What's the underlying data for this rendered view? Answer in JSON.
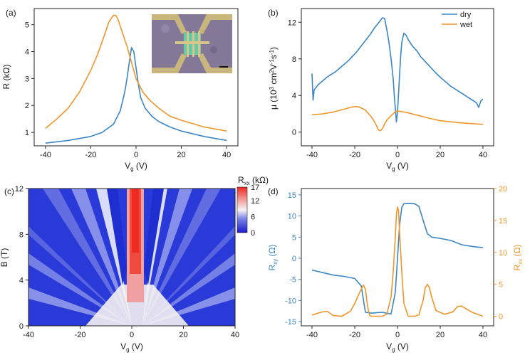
{
  "colors": {
    "blue": "#3b86c4",
    "orange": "#f0962a",
    "blue_cmap": "#2331d6",
    "red_cmap": "#ee2a22"
  },
  "chart_data": [
    {
      "panel": "(a)",
      "type": "line",
      "xlabel": "V_g (V)",
      "ylabel": "R (kΩ)",
      "xlim": [
        -45,
        45
      ],
      "ylim": [
        0.5,
        5.6
      ],
      "xticks": [
        -40,
        -20,
        0,
        20,
        40
      ],
      "yticks": [
        1,
        2,
        3,
        4,
        5
      ],
      "inset": "optical micrograph of device with scale bar",
      "series": [
        {
          "color": "blue",
          "x": [
            -40,
            -30,
            -20,
            -15,
            -10,
            -7,
            -5,
            -4,
            -3,
            -2,
            -1,
            0,
            1,
            2,
            4,
            7,
            10,
            15,
            20,
            30,
            40
          ],
          "y": [
            0.6,
            0.7,
            0.85,
            1.0,
            1.3,
            1.8,
            2.5,
            3.0,
            3.6,
            4.15,
            4.0,
            3.4,
            2.8,
            2.3,
            1.9,
            1.6,
            1.4,
            1.2,
            1.05,
            0.85,
            0.7
          ]
        },
        {
          "color": "orange",
          "x": [
            -40,
            -35,
            -30,
            -25,
            -20,
            -17,
            -14,
            -12,
            -10,
            -9,
            -8,
            -6,
            -4,
            -2,
            0,
            3,
            6,
            10,
            15,
            20,
            30,
            40
          ],
          "y": [
            1.15,
            1.5,
            1.9,
            2.5,
            3.3,
            3.9,
            4.6,
            5.1,
            5.35,
            5.35,
            5.2,
            4.7,
            4.2,
            3.6,
            3.0,
            2.5,
            2.2,
            1.9,
            1.6,
            1.45,
            1.2,
            1.05
          ]
        }
      ]
    },
    {
      "panel": "(b)",
      "type": "line",
      "xlabel": "V_g (V)",
      "ylabel": "μ (10³ cm²V⁻¹s⁻¹)",
      "xlim": [
        -45,
        45
      ],
      "ylim": [
        -1.5,
        13.5
      ],
      "xticks": [
        -40,
        -20,
        0,
        20,
        40
      ],
      "yticks": [
        0,
        4,
        8,
        12
      ],
      "legend": [
        {
          "name": "dry",
          "color": "blue"
        },
        {
          "name": "wet",
          "color": "orange"
        }
      ],
      "legend_position": "top-right",
      "series": [
        {
          "name": "dry",
          "color": "blue",
          "x": [
            -40,
            -39.5,
            -39,
            -37,
            -35,
            -33,
            -31,
            -29,
            -27,
            -25,
            -23,
            -21,
            -19,
            -17,
            -15,
            -13,
            -11,
            -9,
            -7,
            -6,
            -5,
            -4,
            -3,
            -2,
            -1.5,
            -1,
            -0.5,
            0,
            0.5,
            1,
            1.5,
            2,
            3,
            4,
            5,
            7,
            9,
            11,
            13,
            15,
            17,
            19,
            21,
            23,
            25,
            27,
            29,
            31,
            33,
            35,
            37,
            38,
            39,
            40
          ],
          "y": [
            6.4,
            3.5,
            4.6,
            5.2,
            5.6,
            6.0,
            6.3,
            6.6,
            7.0,
            7.4,
            7.8,
            8.3,
            8.8,
            9.4,
            10.0,
            10.6,
            11.3,
            11.9,
            12.5,
            12.4,
            11.2,
            9.8,
            8.0,
            5.8,
            4.0,
            2.6,
            1.1,
            2.2,
            4.2,
            6.4,
            8.3,
            9.8,
            10.8,
            10.6,
            10.1,
            9.4,
            8.9,
            8.2,
            7.7,
            7.2,
            6.7,
            6.2,
            5.8,
            5.4,
            5.0,
            4.7,
            4.4,
            4.1,
            3.8,
            3.5,
            3.2,
            2.7,
            3.4,
            3.6
          ]
        },
        {
          "name": "wet",
          "color": "orange",
          "x": [
            -40,
            -35,
            -30,
            -25,
            -22,
            -20,
            -18,
            -15,
            -12,
            -10,
            -9,
            -8,
            -7,
            -6,
            -5,
            -3,
            -1,
            0,
            1,
            3,
            5,
            10,
            15,
            20,
            30,
            40
          ],
          "y": [
            1.9,
            2.0,
            2.2,
            2.5,
            2.7,
            2.8,
            2.75,
            2.4,
            1.6,
            0.8,
            0.25,
            0.15,
            0.4,
            0.9,
            1.3,
            1.8,
            2.2,
            2.3,
            2.28,
            2.2,
            2.1,
            1.8,
            1.5,
            1.25,
            1.0,
            0.85
          ]
        }
      ]
    },
    {
      "panel": "(c)",
      "type": "heatmap",
      "xlabel": "V_g (V)",
      "ylabel": "B (T)",
      "xlim": [
        -40,
        40
      ],
      "ylim": [
        0,
        12
      ],
      "xticks": [
        -40,
        -20,
        0,
        20,
        40
      ],
      "yticks": [
        0,
        4,
        8,
        12
      ],
      "colorbar": {
        "label": "R_xx (kΩ)",
        "ticks": [
          0,
          6,
          12,
          17
        ],
        "range": [
          0,
          17
        ]
      }
    },
    {
      "panel": "(d)",
      "type": "line",
      "xlabel": "V_g (V)",
      "ylabel_left": "R_xy (Ω)",
      "ylabel_right": "R_xx (Ω)",
      "xlim": [
        -45,
        45
      ],
      "ylim_left": [
        -16,
        16.5
      ],
      "ylim_right": [
        -1.5,
        20
      ],
      "xticks": [
        -40,
        -20,
        0,
        20,
        40
      ],
      "yticks_left": [
        -15,
        -10,
        -5,
        0,
        5,
        10,
        15
      ],
      "yticks_right": [
        0,
        5,
        10,
        15,
        20
      ],
      "series": [
        {
          "name": "R_xy",
          "axis": "left",
          "color": "blue",
          "x": [
            -40,
            -35,
            -30,
            -25,
            -20,
            -17,
            -15,
            -12,
            -10,
            -7,
            -5,
            -3,
            -1,
            0,
            1,
            2,
            3,
            5,
            8,
            10,
            12,
            14,
            16,
            20,
            25,
            30,
            35,
            40
          ],
          "y": [
            -2.8,
            -3.4,
            -4.0,
            -4.3,
            -4.8,
            -6.5,
            -12.8,
            -13.0,
            -12.9,
            -12.8,
            -13.0,
            -13.2,
            -8.0,
            0.0,
            8.0,
            12.0,
            12.9,
            13.0,
            12.9,
            12.3,
            9.0,
            5.8,
            5.0,
            4.7,
            4.2,
            3.2,
            2.8,
            2.5
          ]
        },
        {
          "name": "R_xx",
          "axis": "right",
          "color": "orange",
          "x": [
            -40,
            -36,
            -33,
            -30,
            -26,
            -22,
            -20,
            -18,
            -16,
            -15,
            -14,
            -13,
            -12,
            -10,
            -7,
            -5,
            -3,
            -2,
            -1,
            -0.5,
            0,
            0.5,
            1,
            2,
            3,
            5,
            8,
            10,
            12,
            13,
            14,
            15,
            16,
            18,
            22,
            26,
            28,
            30,
            32,
            35,
            40
          ],
          "y": [
            0.2,
            0.6,
            0.8,
            0.1,
            0.0,
            0.8,
            2.0,
            3.5,
            4.9,
            4.2,
            1.5,
            0.1,
            0.0,
            0.0,
            0.0,
            0.3,
            3.0,
            7.0,
            12.5,
            16.0,
            17.1,
            16.5,
            13.0,
            7.0,
            2.0,
            0.0,
            0.0,
            0.2,
            2.5,
            4.5,
            5.0,
            4.4,
            3.0,
            0.9,
            0.3,
            0.7,
            1.5,
            1.6,
            1.2,
            0.6,
            0.0
          ]
        }
      ]
    }
  ]
}
